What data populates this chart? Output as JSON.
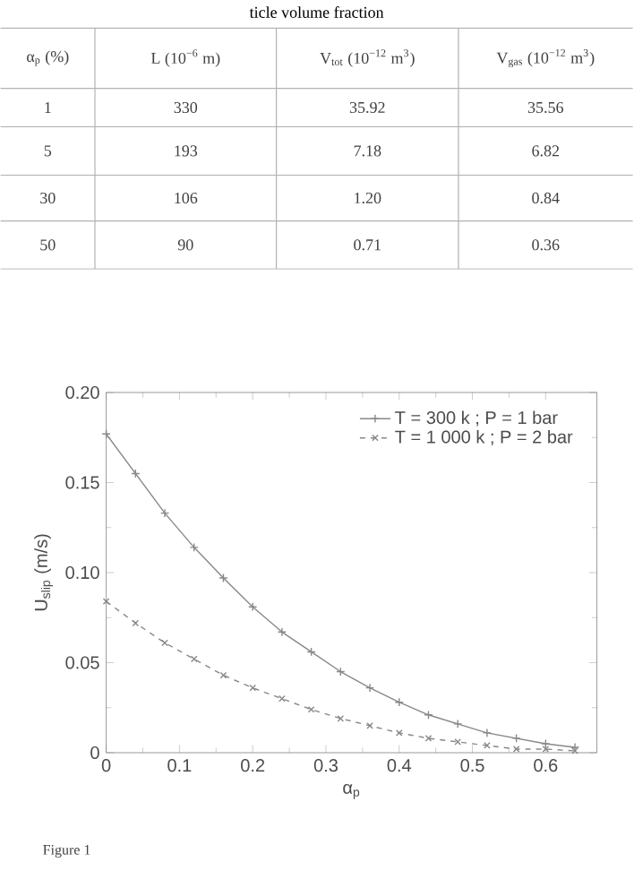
{
  "chart_data": {
    "type": "line",
    "xlabel": "α$_{p}$",
    "ylabel": "U$_{slip}$ (m/s)",
    "x": [
      0,
      0.04,
      0.08,
      0.12,
      0.16,
      0.2,
      0.24,
      0.28,
      0.32,
      0.36,
      0.4,
      0.44,
      0.48,
      0.52,
      0.56,
      0.6,
      0.64
    ],
    "series": [
      {
        "name": "T = 300 k ; P = 1 bar",
        "color": "#888888",
        "marker": "plus",
        "line_style": "solid",
        "values": [
          0.177,
          0.155,
          0.133,
          0.114,
          0.097,
          0.081,
          0.067,
          0.056,
          0.045,
          0.036,
          0.028,
          0.021,
          0.016,
          0.011,
          0.008,
          0.005,
          0.003
        ]
      },
      {
        "name": "T = 1 000 k ; P = 2 bar",
        "color": "#888888",
        "marker": "cross",
        "line_style": "dashed",
        "values": [
          0.084,
          0.072,
          0.061,
          0.052,
          0.043,
          0.036,
          0.03,
          0.024,
          0.019,
          0.015,
          0.011,
          0.008,
          0.006,
          0.004,
          0.002,
          0.002,
          0.001
        ]
      }
    ],
    "xlim": [
      0,
      0.67
    ],
    "ylim": [
      0,
      0.2
    ],
    "xticks": [
      0,
      0.1,
      0.2,
      0.3,
      0.4,
      0.5,
      0.6
    ],
    "yticks": [
      0,
      0.05,
      {
        "value": 0.1,
        "label": "0.10"
      },
      0.15,
      {
        "value": 0.2,
        "label": "0.20"
      }
    ],
    "grid": false,
    "legend": "top right",
    "annotations": [
      "ticle volume fraction",
      "α$_{p}$ (%)",
      "L (10$^{−6}$ m)",
      "V$_{tot}$ (10$^{−12}$ m$^{3}$)",
      "V$_{gas}$ (10$^{−12}$ m$^{3}$)",
      "1",
      "330",
      "35.92",
      "35.56",
      "5",
      "193",
      "7.18",
      "6.82",
      "30",
      "106",
      "1.20",
      "0.84",
      "50",
      "90",
      "0.71",
      "0.36",
      "Figure 1"
    ]
  }
}
